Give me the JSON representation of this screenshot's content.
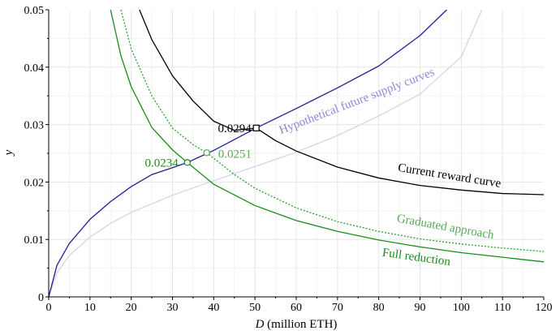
{
  "chart_data": {
    "type": "line",
    "xlabel_var": "D",
    "xlabel_rest": " (million ETH)",
    "ylabel": "y",
    "xlim": [
      0,
      120
    ],
    "ylim": [
      0,
      0.05
    ],
    "xticks": [
      0,
      10,
      20,
      30,
      40,
      50,
      60,
      70,
      80,
      90,
      100,
      110,
      120
    ],
    "yticks": [
      0,
      0.01,
      0.02,
      0.03,
      0.04,
      0.05
    ],
    "ytick_labels": [
      "0",
      "0.01",
      "0.02",
      "0.03",
      "0.04",
      "0.05"
    ],
    "grid": true,
    "series": [
      {
        "name": "Current reward curve",
        "color": "#000000",
        "style": "solid",
        "x": [
          22,
          25,
          30,
          35,
          40,
          45,
          50.3,
          55,
          60,
          70,
          80,
          90,
          100,
          110,
          120
        ],
        "y": [
          0.05,
          0.0448,
          0.0385,
          0.0341,
          0.0306,
          0.029,
          0.0294,
          0.0272,
          0.0254,
          0.0226,
          0.0207,
          0.0194,
          0.0186,
          0.018,
          0.0178
        ]
      },
      {
        "name": "Graduated approach",
        "color": "#2ca02c",
        "style": "dotted",
        "x": [
          17.5,
          20,
          25,
          30,
          35,
          38.3,
          45,
          50,
          60,
          70,
          80,
          90,
          100,
          110,
          120
        ],
        "y": [
          0.05,
          0.0432,
          0.035,
          0.0294,
          0.0265,
          0.0251,
          0.0213,
          0.0189,
          0.0155,
          0.0131,
          0.0114,
          0.0101,
          0.0092,
          0.0085,
          0.0079
        ]
      },
      {
        "name": "Full reduction",
        "color": "#1a8c1a",
        "style": "solid",
        "x": [
          15,
          17.5,
          20,
          25,
          30,
          33.6,
          40,
          50,
          60,
          70,
          80,
          90,
          100,
          110,
          120
        ],
        "y": [
          0.05,
          0.042,
          0.0366,
          0.0295,
          0.0256,
          0.0234,
          0.0196,
          0.0159,
          0.0133,
          0.0114,
          0.0099,
          0.0087,
          0.0077,
          0.0069,
          0.0061
        ]
      },
      {
        "name": "Hypothetical future supply curves",
        "color": "#1f1f99",
        "style": "solid",
        "x": [
          0,
          2,
          5,
          10,
          15,
          20,
          25,
          30,
          33.6,
          40,
          50.3,
          60,
          70,
          80,
          90,
          96.5
        ],
        "y": [
          0,
          0.0055,
          0.0093,
          0.0135,
          0.0166,
          0.0192,
          0.0213,
          0.0225,
          0.0234,
          0.0255,
          0.0294,
          0.0328,
          0.0364,
          0.0402,
          0.0455,
          0.05
        ]
      },
      {
        "name": "",
        "color": "#d4d4ec",
        "style": "solid",
        "x": [
          0,
          2,
          5,
          10,
          15,
          20,
          30,
          38.3,
          50,
          60,
          70,
          80,
          90,
          100,
          105
        ],
        "y": [
          0,
          0.0042,
          0.0072,
          0.0104,
          0.0128,
          0.0147,
          0.0177,
          0.0198,
          0.0227,
          0.0252,
          0.0281,
          0.0315,
          0.0353,
          0.0418,
          0.05
        ]
      }
    ],
    "markers": [
      {
        "x": 50.3,
        "y": 0.0294,
        "label": "0.0294",
        "color": "#000000",
        "shape": "square"
      },
      {
        "x": 38.3,
        "y": 0.0251,
        "label": "0.0251",
        "color": "#5aa85a",
        "shape": "circle"
      },
      {
        "x": 33.6,
        "y": 0.0234,
        "label": "0.0234",
        "color": "#1a8c1a",
        "shape": "circle"
      }
    ],
    "annotations": [
      {
        "text": "Hypothetical future supply curves",
        "color": "#8a8ad6",
        "x": 75,
        "y": 0.0335,
        "angle": -21
      },
      {
        "text": "Current reward curve",
        "color": "#000000",
        "x": 97,
        "y": 0.0205,
        "angle": 9
      },
      {
        "text": "Graduated approach",
        "color": "#5aa85a",
        "x": 96,
        "y": 0.0116,
        "angle": 10
      },
      {
        "text": "Full reduction",
        "color": "#1a8c1a",
        "x": 89,
        "y": 0.0063,
        "angle": 8
      }
    ]
  }
}
